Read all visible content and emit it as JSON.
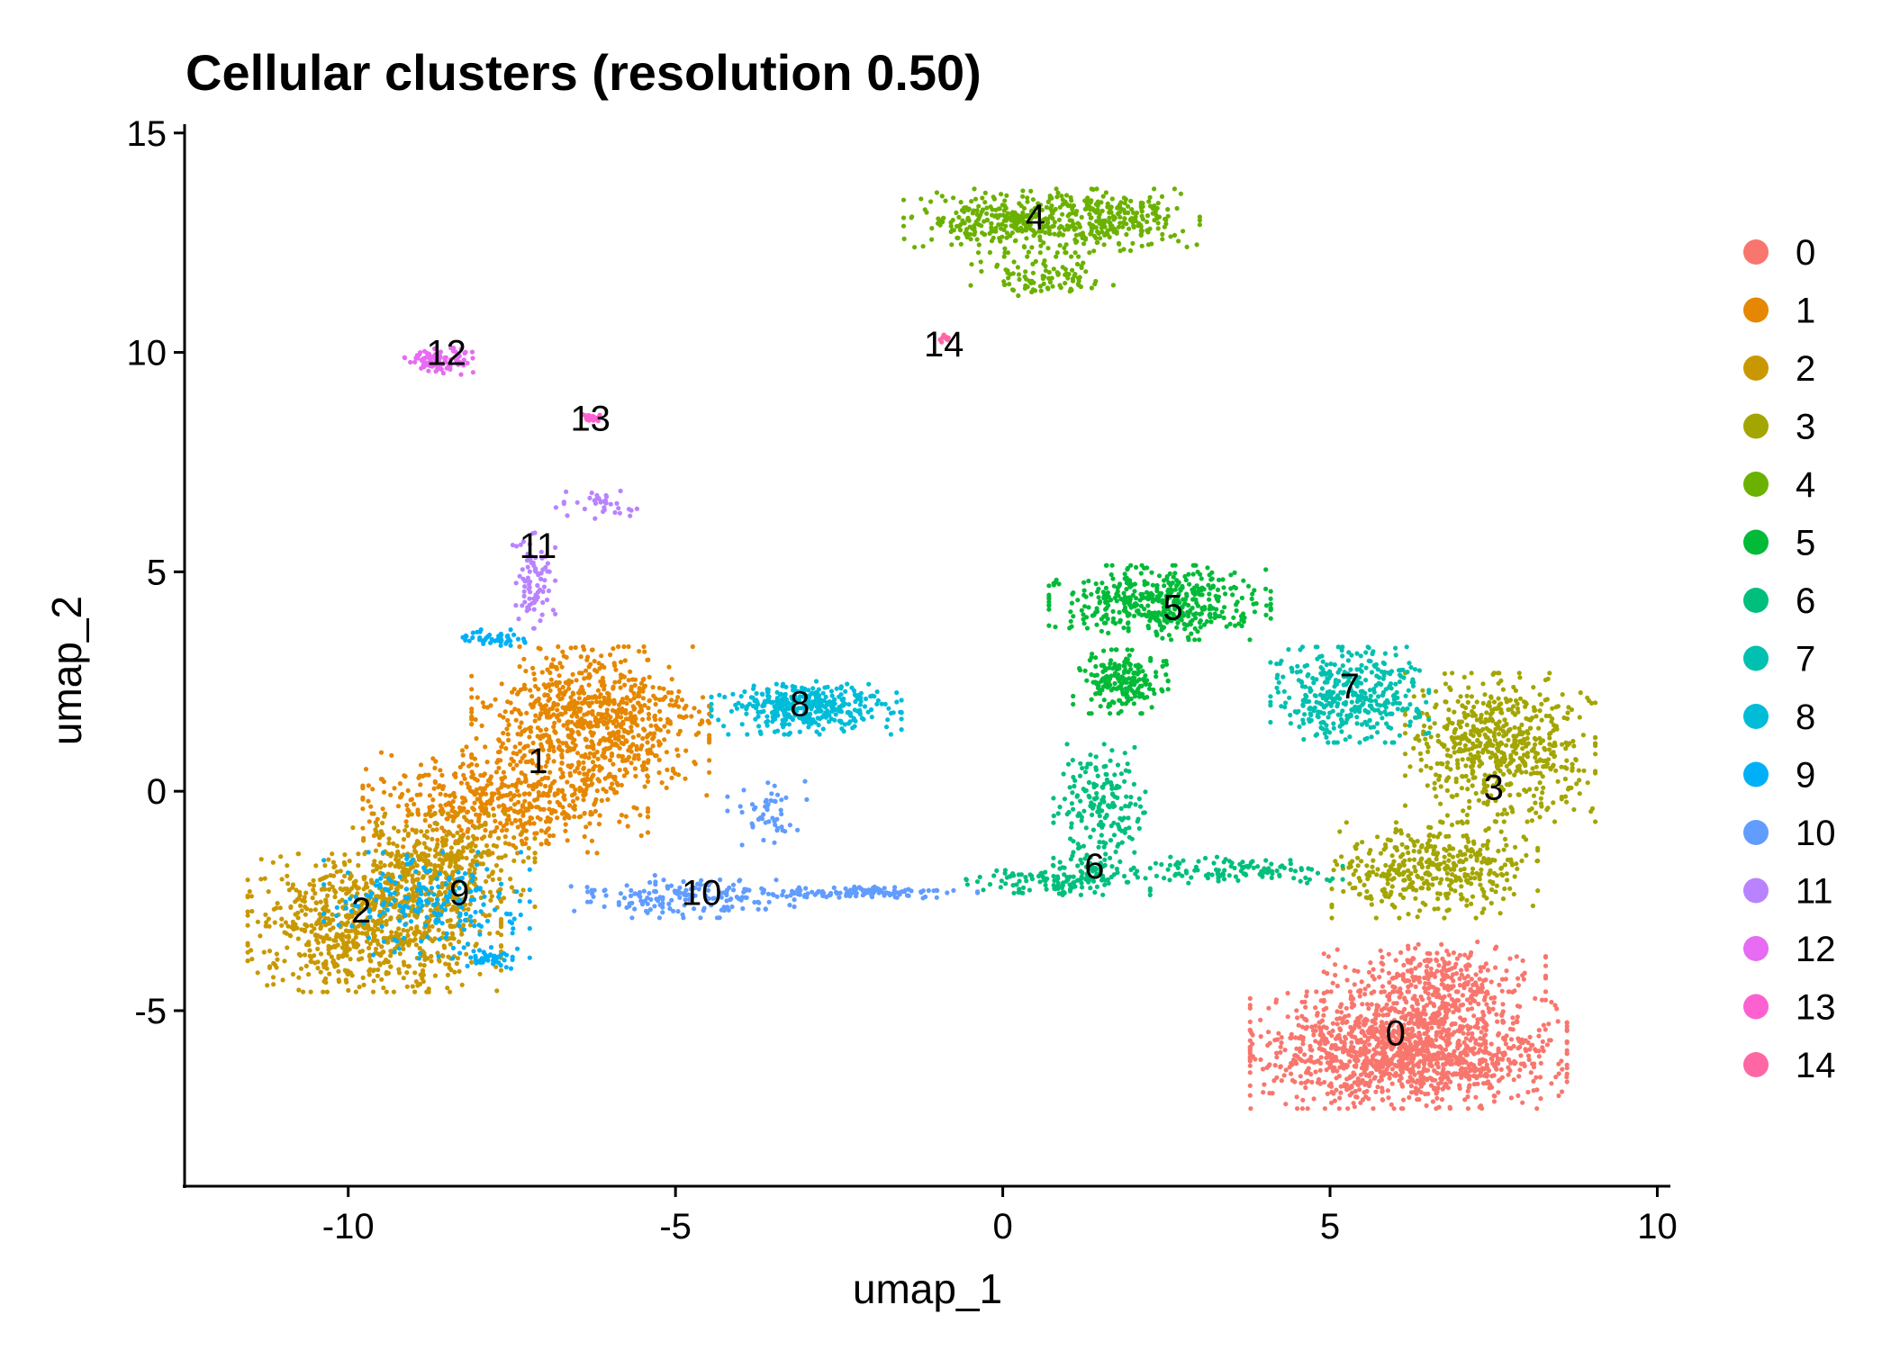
{
  "chart_data": {
    "type": "scatter",
    "title": "Cellular clusters (resolution 0.50)",
    "xlabel": "umap_1",
    "ylabel": "umap_2",
    "xlim": [
      -12.5,
      10.2
    ],
    "ylim": [
      -9,
      15.2
    ],
    "xticks": [
      -10,
      -5,
      0,
      5,
      10
    ],
    "yticks": [
      -5,
      0,
      5,
      10,
      15
    ],
    "xtick_labels": [
      "-10",
      "-5",
      "0",
      "5",
      "10"
    ],
    "ytick_labels": [
      "-5",
      "0",
      "5",
      "10",
      "15"
    ],
    "grid": false,
    "legend_position": "right",
    "series": [
      {
        "name": "0",
        "color": "#F8766D",
        "label_x": 6.0,
        "label_y": -5.5,
        "n": 1700,
        "blobs": [
          [
            6.2,
            -5.9,
            2.0,
            1.1,
            0.8
          ],
          [
            6.6,
            -4.4,
            1.4,
            0.8,
            0.2
          ]
        ]
      },
      {
        "name": "1",
        "color": "#E58700",
        "label_x": -7.1,
        "label_y": 0.7,
        "n": 1300,
        "blobs": [
          [
            -6.3,
            1.6,
            1.5,
            1.4,
            0.6
          ],
          [
            -7.6,
            -0.2,
            1.8,
            1.0,
            0.4
          ]
        ]
      },
      {
        "name": "2",
        "color": "#C99800",
        "label_x": -9.8,
        "label_y": -2.7,
        "n": 1200,
        "blobs": [
          [
            -9.6,
            -3.0,
            1.6,
            1.3,
            0.7
          ],
          [
            -8.6,
            -1.6,
            1.2,
            0.9,
            0.3
          ]
        ]
      },
      {
        "name": "3",
        "color": "#A3A500",
        "label_x": 7.5,
        "label_y": 0.1,
        "n": 1000,
        "blobs": [
          [
            7.6,
            1.0,
            1.2,
            1.4,
            0.6
          ],
          [
            6.6,
            -1.8,
            1.3,
            0.9,
            0.4
          ]
        ]
      },
      {
        "name": "4",
        "color": "#6BB100",
        "label_x": 0.5,
        "label_y": 13.1,
        "n": 650,
        "blobs": [
          [
            0.3,
            13.0,
            1.5,
            0.6,
            0.6
          ],
          [
            1.8,
            13.0,
            1.0,
            0.6,
            0.25
          ],
          [
            0.6,
            11.7,
            0.9,
            0.4,
            0.15
          ]
        ]
      },
      {
        "name": "5",
        "color": "#00BA38",
        "label_x": 2.6,
        "label_y": 4.2,
        "n": 650,
        "blobs": [
          [
            2.4,
            4.3,
            1.4,
            0.7,
            0.7
          ],
          [
            1.8,
            2.5,
            0.6,
            0.6,
            0.3
          ]
        ]
      },
      {
        "name": "6",
        "color": "#00BF7D",
        "label_x": 1.4,
        "label_y": -1.7,
        "n": 450,
        "blobs": [
          [
            1.5,
            -0.5,
            0.6,
            1.3,
            0.45
          ],
          [
            0.8,
            -2.0,
            1.2,
            0.3,
            0.3
          ],
          [
            3.5,
            -1.8,
            1.4,
            0.25,
            0.25
          ]
        ]
      },
      {
        "name": "7",
        "color": "#00C0AF",
        "label_x": 5.3,
        "label_y": 2.4,
        "n": 400,
        "blobs": [
          [
            5.3,
            2.2,
            1.0,
            0.9,
            1.0
          ]
        ]
      },
      {
        "name": "8",
        "color": "#00BCD8",
        "label_x": -3.1,
        "label_y": 2.0,
        "n": 380,
        "blobs": [
          [
            -3.0,
            1.9,
            1.2,
            0.5,
            1.0
          ]
        ]
      },
      {
        "name": "9",
        "color": "#00B0F6",
        "label_x": -8.3,
        "label_y": -2.3,
        "n": 300,
        "blobs": [
          [
            -8.8,
            -2.6,
            1.3,
            1.0,
            0.7
          ],
          [
            -7.8,
            3.5,
            0.5,
            0.15,
            0.15
          ],
          [
            -7.9,
            -3.8,
            0.4,
            0.2,
            0.15
          ]
        ]
      },
      {
        "name": "10",
        "color": "#619CFF",
        "label_x": -4.6,
        "label_y": -2.3,
        "n": 330,
        "blobs": [
          [
            -5.0,
            -2.4,
            1.5,
            0.4,
            0.5
          ],
          [
            -2.2,
            -2.3,
            1.5,
            0.12,
            0.35
          ],
          [
            -3.6,
            -0.5,
            0.5,
            0.6,
            0.15
          ]
        ]
      },
      {
        "name": "11",
        "color": "#B983FF",
        "label_x": -7.1,
        "label_y": 5.6,
        "n": 120,
        "blobs": [
          [
            -7.2,
            4.8,
            0.3,
            0.9,
            0.7
          ],
          [
            -6.1,
            6.5,
            0.6,
            0.35,
            0.3
          ]
        ]
      },
      {
        "name": "12",
        "color": "#E76BF3",
        "label_x": -8.5,
        "label_y": 10.0,
        "n": 90,
        "blobs": [
          [
            -8.6,
            9.8,
            0.45,
            0.25,
            1.0
          ]
        ]
      },
      {
        "name": "13",
        "color": "#FD61D1",
        "label_x": -6.3,
        "label_y": 8.5,
        "n": 25,
        "blobs": [
          [
            -6.3,
            8.5,
            0.12,
            0.08,
            1.0
          ]
        ]
      },
      {
        "name": "14",
        "color": "#FF67A4",
        "label_x": -0.9,
        "label_y": 10.2,
        "n": 10,
        "blobs": [
          [
            -0.9,
            10.3,
            0.08,
            0.08,
            1.0
          ]
        ]
      }
    ]
  }
}
